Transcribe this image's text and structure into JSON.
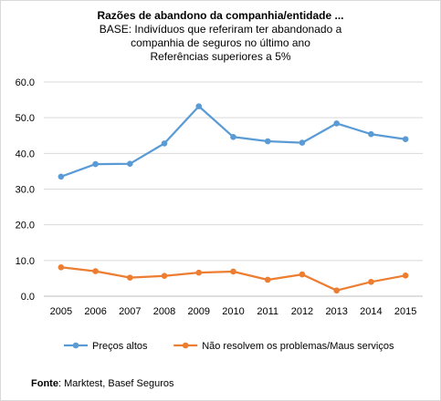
{
  "chart_data": {
    "type": "line",
    "title": "Razões de abandono da companhia/entidade ...",
    "subtitle": [
      "BASE: Indivíduos que referiram ter abandonado a",
      "companhia de seguros no último ano",
      "Referências superiores a 5%"
    ],
    "x": [
      "2005",
      "2006",
      "2007",
      "2008",
      "2009",
      "2010",
      "2011",
      "2012",
      "2013",
      "2014",
      "2015"
    ],
    "yticks": [
      "0.0",
      "10.0",
      "20.0",
      "30.0",
      "40.0",
      "50.0",
      "60.0"
    ],
    "ylim": [
      0,
      60
    ],
    "grid": true,
    "legend": "bottom",
    "series": [
      {
        "name": "Preços altos",
        "color": "#5b9bd5",
        "values": [
          33.5,
          37.0,
          37.1,
          42.8,
          53.2,
          44.6,
          43.4,
          43.0,
          48.4,
          45.4,
          44.0
        ]
      },
      {
        "name": "Não resolvem os problemas/Maus serviços",
        "color": "#ed7d31",
        "values": [
          8.1,
          7.0,
          5.2,
          5.7,
          6.6,
          6.9,
          4.6,
          6.1,
          1.6,
          4.0,
          5.8
        ]
      }
    ]
  },
  "source": {
    "label": "Fonte",
    "text": ": Marktest, Basef Seguros"
  }
}
